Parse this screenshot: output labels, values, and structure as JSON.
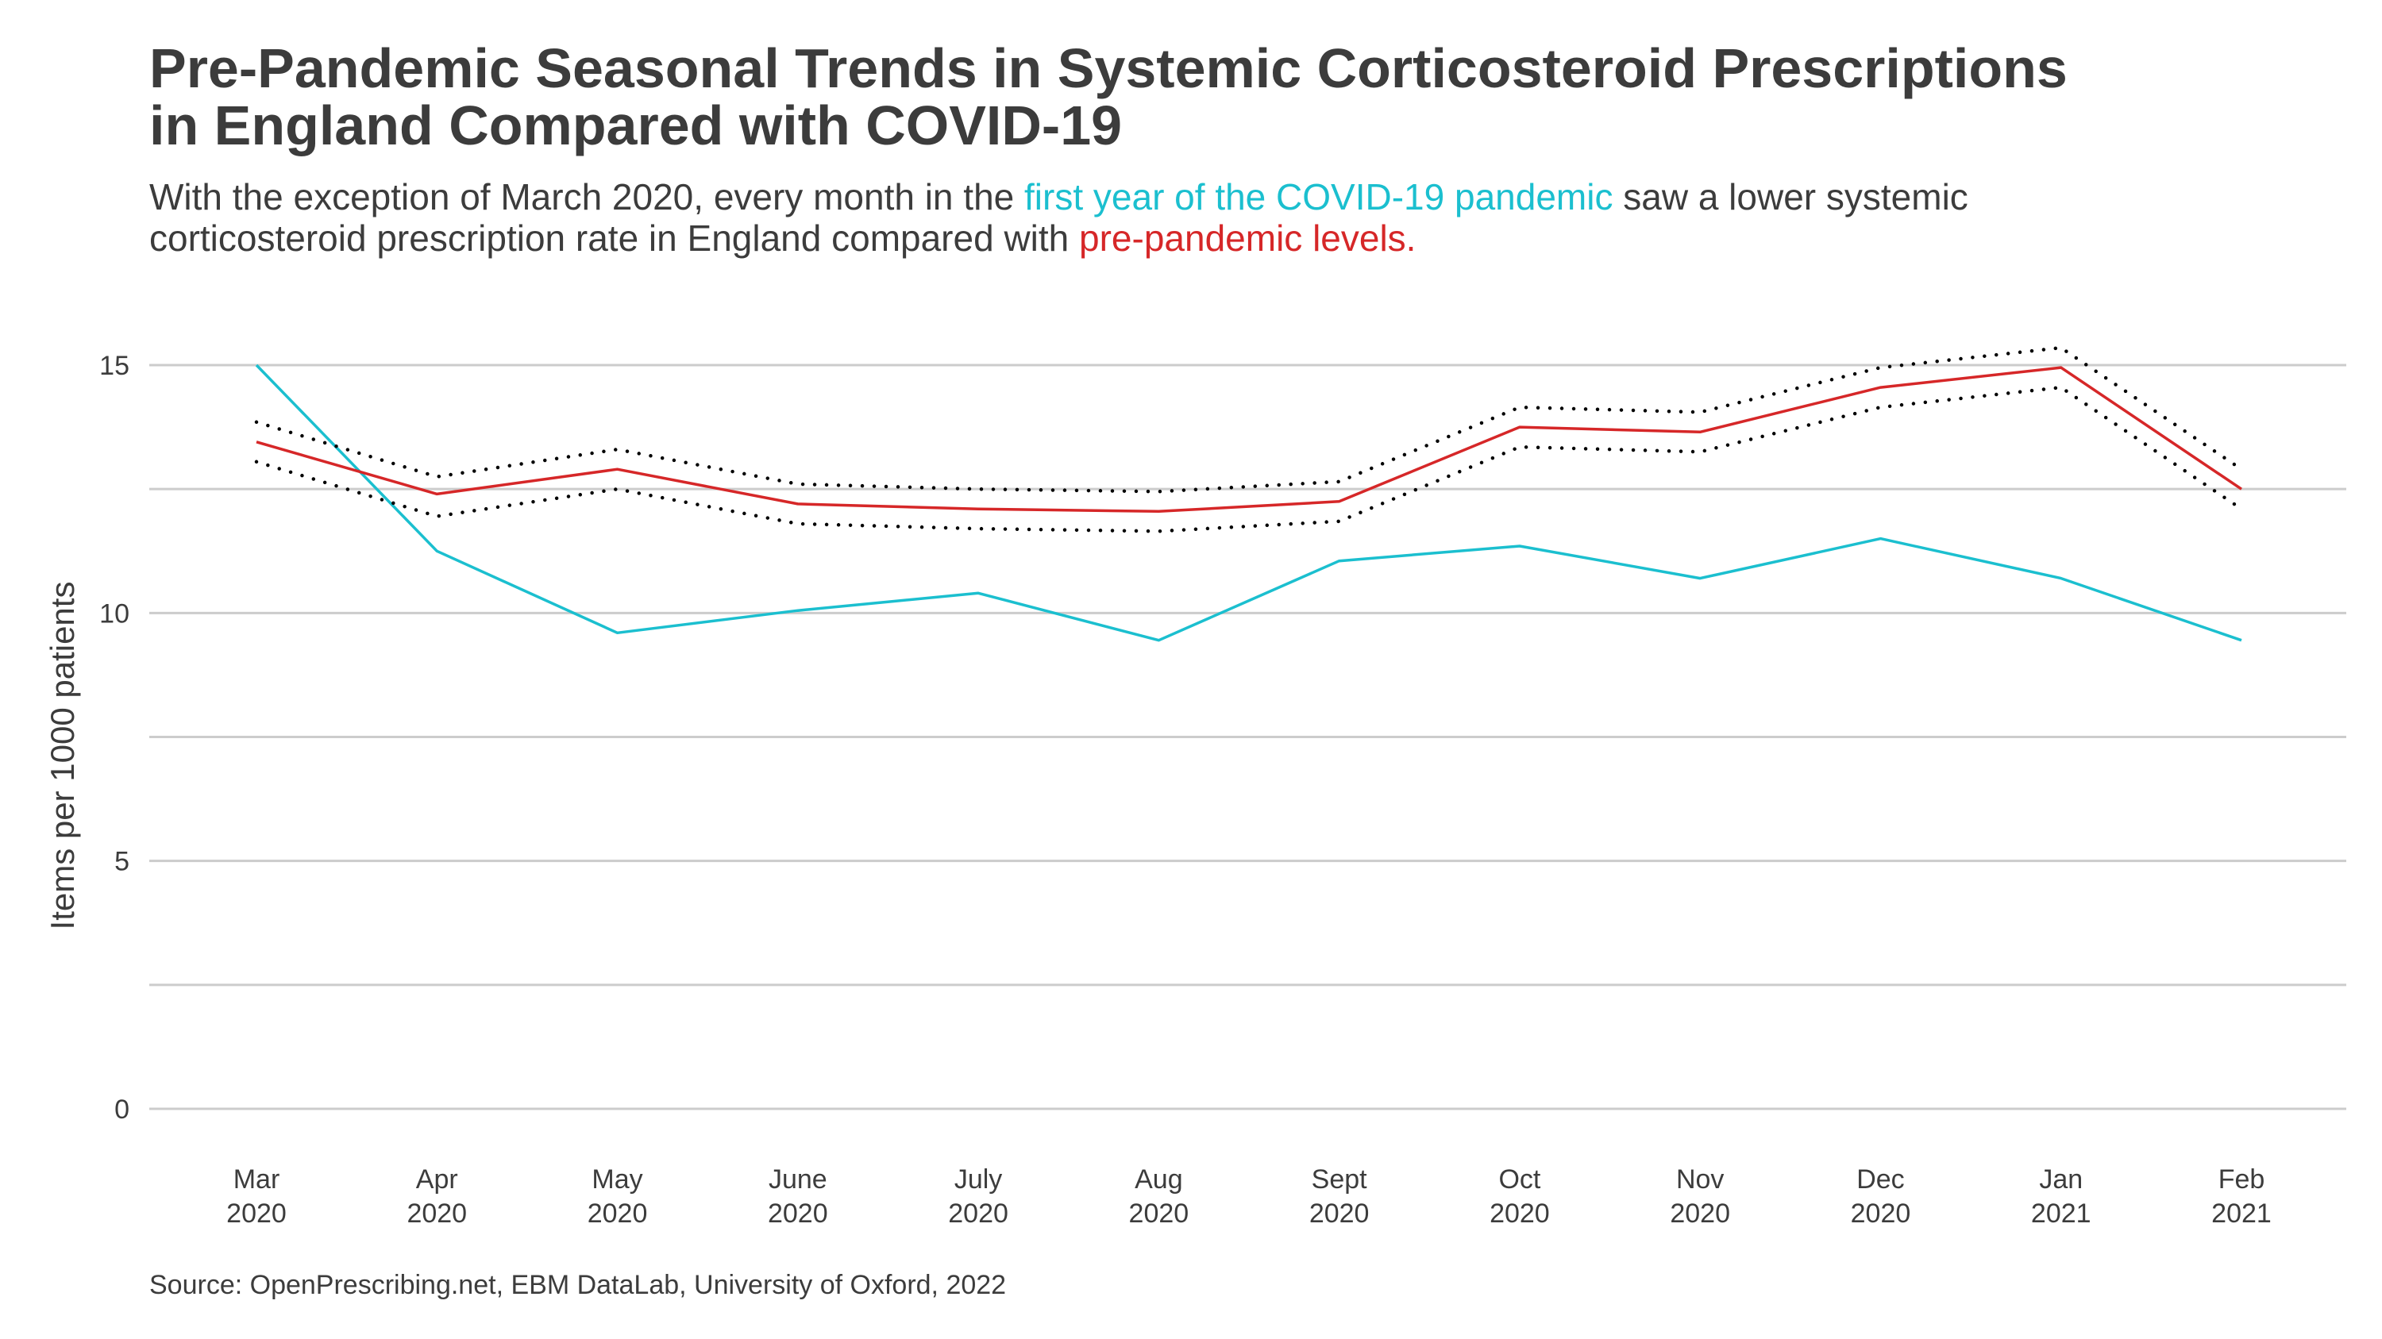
{
  "header": {
    "title_line1": "Pre-Pandemic Seasonal Trends in Systemic Corticosteroid Prescriptions",
    "title_line2": "in England Compared with COVID-19",
    "subtitle_part1": "With the exception of March 2020, every month in the ",
    "subtitle_covid": "first year of the COVID-19 pandemic",
    "subtitle_part2": " saw a lower systemic",
    "subtitle_part3": "corticosteroid prescription rate in England compared with ",
    "subtitle_pre": "pre-pandemic levels."
  },
  "source": "Source: OpenPrescribing.net, EBM DataLab, University of Oxford, 2022",
  "chart_data": {
    "type": "line",
    "ylabel": "Items per 1000 patients",
    "xlabel": "",
    "ylim": [
      0,
      15
    ],
    "yticks": [
      0,
      5,
      10,
      15
    ],
    "grid": true,
    "categories": [
      {
        "month": "Mar",
        "year": "2020"
      },
      {
        "month": "Apr",
        "year": "2020"
      },
      {
        "month": "May",
        "year": "2020"
      },
      {
        "month": "June",
        "year": "2020"
      },
      {
        "month": "July",
        "year": "2020"
      },
      {
        "month": "Aug",
        "year": "2020"
      },
      {
        "month": "Sept",
        "year": "2020"
      },
      {
        "month": "Oct",
        "year": "2020"
      },
      {
        "month": "Nov",
        "year": "2020"
      },
      {
        "month": "Dec",
        "year": "2020"
      },
      {
        "month": "Jan",
        "year": "2021"
      },
      {
        "month": "Feb",
        "year": "2021"
      }
    ],
    "series": [
      {
        "key": "covid",
        "color": "#1bbfcf",
        "style": "solid",
        "values": [
          15.0,
          11.25,
          9.6,
          10.05,
          10.4,
          9.45,
          11.05,
          11.35,
          10.7,
          11.5,
          10.7,
          9.45
        ]
      },
      {
        "key": "pre",
        "color": "#d62728",
        "style": "solid",
        "values": [
          13.45,
          12.4,
          12.9,
          12.2,
          12.1,
          12.05,
          12.25,
          13.75,
          13.65,
          14.55,
          14.95,
          12.5
        ]
      },
      {
        "key": "pre_upper",
        "color": "#000000",
        "style": "dotted",
        "values": [
          13.85,
          12.75,
          13.3,
          12.6,
          12.5,
          12.45,
          12.65,
          14.15,
          14.05,
          14.95,
          15.35,
          12.9
        ]
      },
      {
        "key": "pre_lower",
        "color": "#000000",
        "style": "dotted",
        "values": [
          13.05,
          11.95,
          12.5,
          11.8,
          11.7,
          11.65,
          11.85,
          13.35,
          13.25,
          14.15,
          14.55,
          12.1
        ]
      }
    ]
  }
}
